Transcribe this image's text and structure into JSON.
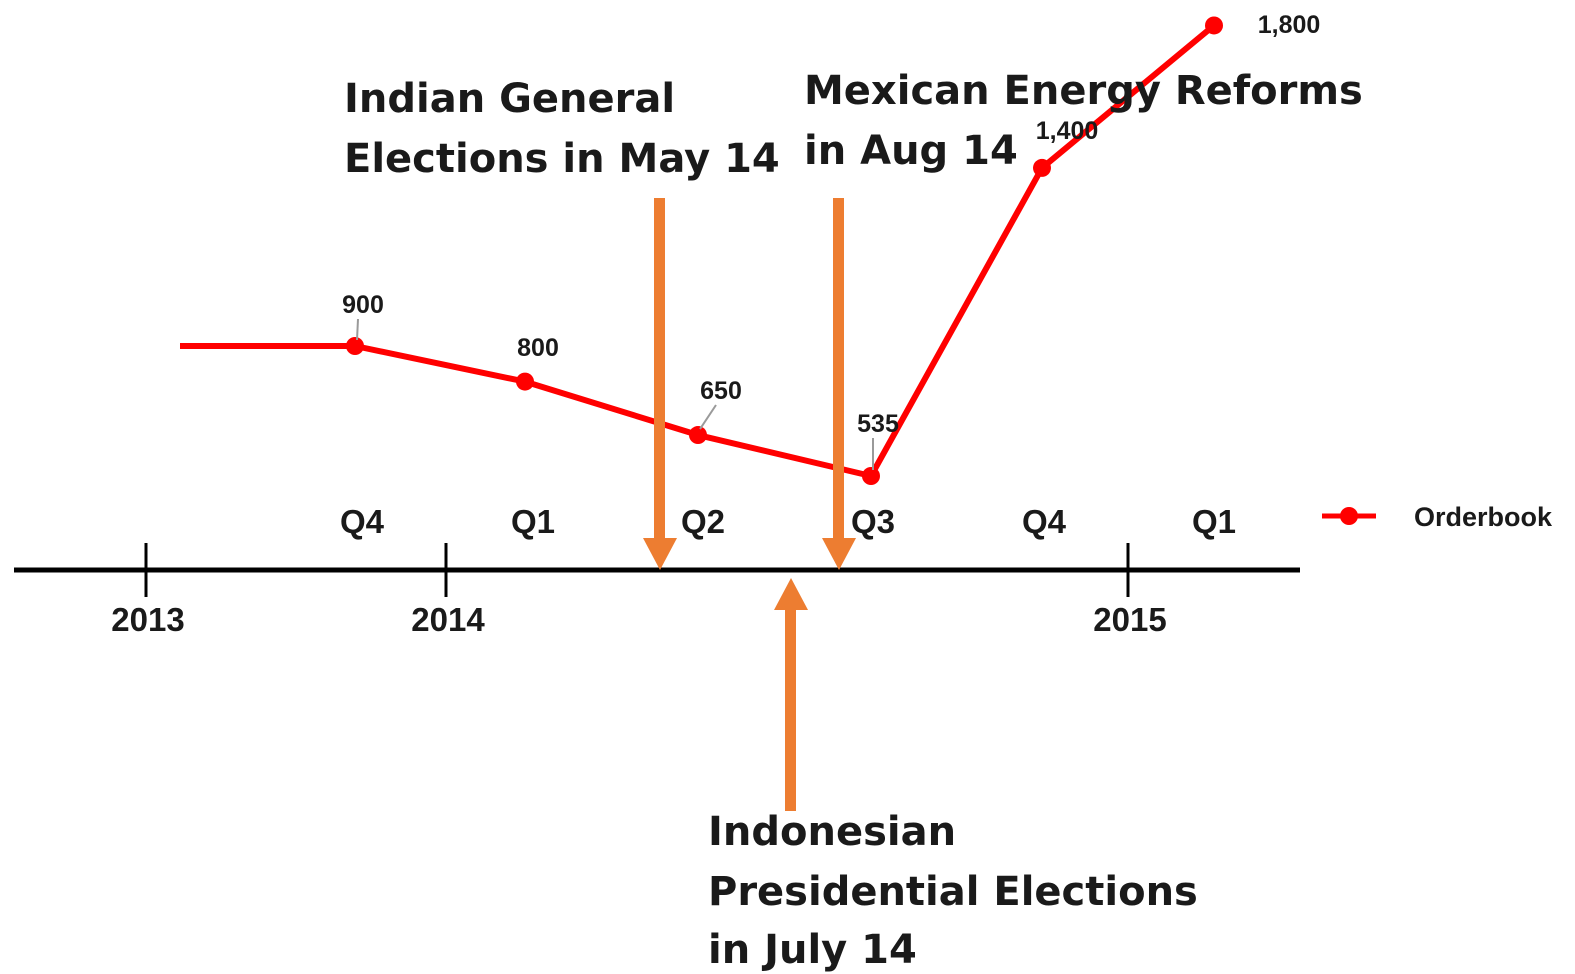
{
  "chart_data": {
    "type": "line",
    "series": [
      {
        "name": "Orderbook",
        "color": "#ff0000",
        "points": [
          {
            "quarter": "Q4",
            "year": "2013",
            "value": 900,
            "label": "900"
          },
          {
            "quarter": "Q1",
            "year": "2014",
            "value": 800,
            "label": "800"
          },
          {
            "quarter": "Q2",
            "year": "2014",
            "value": 650,
            "label": "650"
          },
          {
            "quarter": "Q3",
            "year": "2014",
            "value": 535,
            "label": "535"
          },
          {
            "quarter": "Q4",
            "year": "2014",
            "value": 1400,
            "label": "1,400"
          },
          {
            "quarter": "Q1",
            "year": "2015",
            "value": 1800,
            "label": "1,800"
          }
        ]
      }
    ],
    "quarter_labels": [
      "Q4",
      "Q1",
      "Q2",
      "Q3",
      "Q4",
      "Q1"
    ],
    "year_labels": [
      "2013",
      "2014",
      "2015"
    ],
    "legend": {
      "label": "Orderbook",
      "position": "right"
    },
    "annotations": [
      {
        "lines": [
          "Indian General",
          "Elections in May 14"
        ],
        "arrow_color": "#ed7d31",
        "direction": "down"
      },
      {
        "lines": [
          "Mexican Energy Reforms",
          "in Aug 14"
        ],
        "arrow_color": "#ed7d31",
        "direction": "down"
      },
      {
        "lines": [
          "Indonesian",
          "Presidential Elections",
          "in July 14"
        ],
        "arrow_color": "#ed7d31",
        "direction": "up"
      }
    ]
  }
}
